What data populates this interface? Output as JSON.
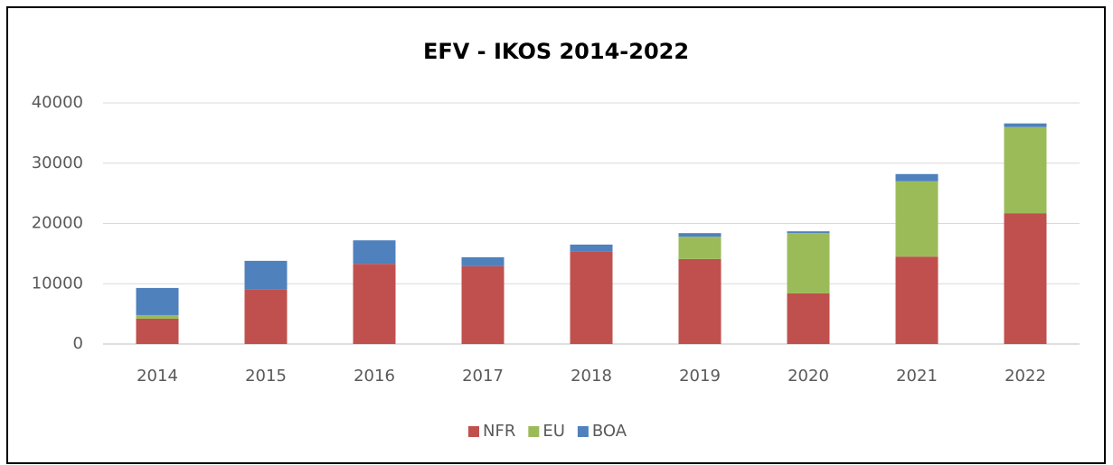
{
  "chart_data": {
    "type": "bar",
    "stacked": true,
    "title": "EFV - IKOS 2014-2022",
    "categories": [
      "2014",
      "2015",
      "2016",
      "2017",
      "2018",
      "2019",
      "2020",
      "2021",
      "2022"
    ],
    "series": [
      {
        "name": "NFR",
        "color": "#c0504d",
        "values": [
          4200,
          9100,
          13300,
          12900,
          15400,
          14100,
          8400,
          14500,
          21700
        ]
      },
      {
        "name": "EU",
        "color": "#9bbb59",
        "values": [
          600,
          0,
          0,
          0,
          0,
          3700,
          10000,
          12500,
          14300
        ]
      },
      {
        "name": "BOA",
        "color": "#4f81bd",
        "values": [
          4500,
          4700,
          3900,
          1500,
          1100,
          600,
          300,
          1200,
          600
        ]
      }
    ],
    "ylim": [
      0,
      40000
    ],
    "yticks": [
      0,
      10000,
      20000,
      30000,
      40000
    ],
    "grid": true,
    "legend": "bottom"
  }
}
